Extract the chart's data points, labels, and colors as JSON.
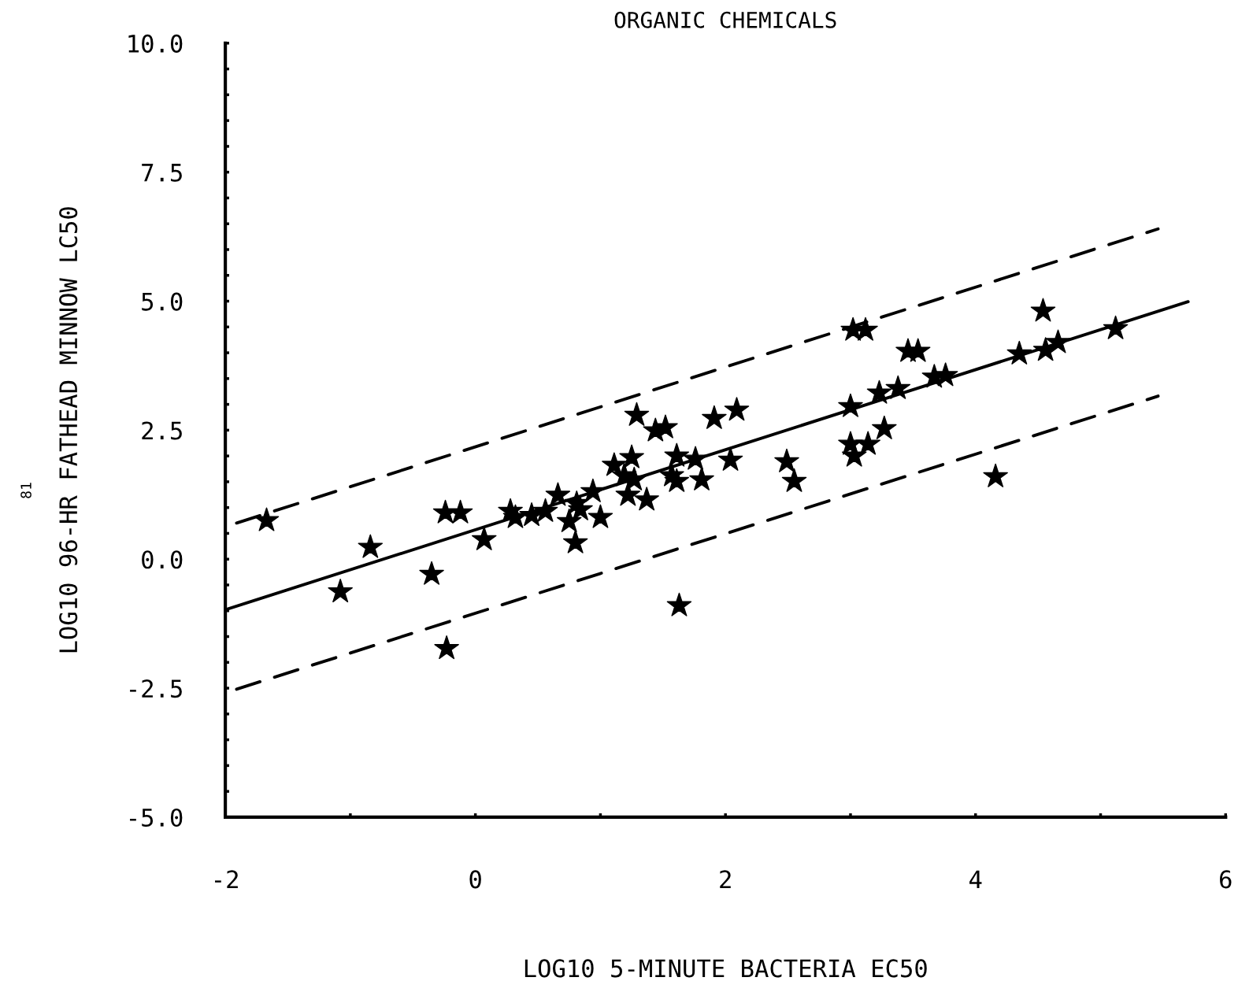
{
  "chart_data": {
    "type": "scatter",
    "title": "ORGANIC CHEMICALS",
    "xlabel": "LOG10 5-MINUTE BACTERIA EC50",
    "ylabel": "LOG10 96-HR FATHEAD MINNOW LC50",
    "annotations": [
      "81"
    ],
    "xlim": [
      -2,
      6
    ],
    "ylim": [
      -5,
      10
    ],
    "xticks": [
      {
        "value": -2,
        "label": "-2"
      },
      {
        "value": -1,
        "label": null
      },
      0,
      {
        "value": 1,
        "label": null
      },
      {
        "value": 2,
        "label": "2"
      },
      {
        "value": 3,
        "label": null
      },
      {
        "value": 4,
        "label": "4"
      },
      {
        "value": 5,
        "label": null
      },
      {
        "value": 6,
        "label": "6"
      }
    ],
    "yticks": [
      {
        "value": -5,
        "label": "-5.0"
      },
      {
        "value": -4.5,
        "label": null
      },
      {
        "value": -4,
        "label": null
      },
      {
        "value": -3.5,
        "label": null
      },
      {
        "value": -3,
        "label": null
      },
      {
        "value": -2.5,
        "label": "-2.5"
      },
      {
        "value": -2,
        "label": null
      },
      {
        "value": -1.5,
        "label": null
      },
      {
        "value": -1,
        "label": null
      },
      {
        "value": -0.5,
        "label": null
      },
      {
        "value": 0,
        "label": "0.0"
      },
      {
        "value": 0.5,
        "label": null
      },
      {
        "value": 1,
        "label": null
      },
      {
        "value": 1.5,
        "label": null
      },
      {
        "value": 2,
        "label": null
      },
      {
        "value": 2.5,
        "label": "2.5"
      },
      {
        "value": 3,
        "label": null
      },
      {
        "value": 3.5,
        "label": null
      },
      {
        "value": 4,
        "label": null
      },
      {
        "value": 4.5,
        "label": null
      },
      {
        "value": 5,
        "label": "5.0"
      },
      {
        "value": 5.5,
        "label": null
      },
      {
        "value": 6,
        "label": null
      },
      {
        "value": 6.5,
        "label": null
      },
      {
        "value": 7,
        "label": null
      },
      {
        "value": 7.5,
        "label": "7.5"
      },
      {
        "value": 8,
        "label": null
      },
      {
        "value": 8.5,
        "label": null
      },
      {
        "value": 9,
        "label": null
      },
      {
        "value": 9.5,
        "label": null
      },
      {
        "value": 10,
        "label": "10.0"
      }
    ],
    "grid": false,
    "marker": "star",
    "series": [
      {
        "color": "#000000",
        "x": [
          -1.67,
          -1.08,
          -0.84,
          -0.35,
          -0.24,
          -0.12,
          -0.23,
          0.07,
          0.28,
          0.32,
          0.45,
          0.56,
          0.66,
          0.75,
          0.8,
          0.81,
          0.84,
          0.94,
          1.0,
          1.11,
          1.19,
          1.22,
          1.25,
          1.27,
          1.29,
          1.37,
          1.44,
          1.52,
          1.57,
          1.61,
          1.61,
          1.63,
          1.76,
          1.81,
          1.91,
          2.09,
          2.04,
          2.49,
          2.55,
          3.0,
          3.03,
          3.14,
          3.27,
          3.0,
          3.23,
          3.38,
          3.02,
          3.12,
          3.46,
          3.54,
          3.67,
          3.76,
          4.16,
          4.35,
          4.54,
          4.56,
          4.66,
          5.12
        ],
        "values": [
          0.75,
          -0.63,
          0.23,
          -0.29,
          0.9,
          0.9,
          -1.73,
          0.38,
          0.93,
          0.81,
          0.85,
          0.93,
          1.24,
          0.73,
          0.32,
          1.08,
          0.96,
          1.31,
          0.81,
          1.82,
          1.62,
          1.24,
          1.97,
          1.54,
          2.79,
          1.15,
          2.49,
          2.55,
          1.62,
          2.0,
          1.51,
          -0.9,
          1.94,
          1.54,
          2.73,
          2.89,
          1.92,
          1.89,
          1.51,
          2.23,
          2.0,
          2.23,
          2.53,
          2.96,
          3.22,
          3.31,
          4.44,
          4.44,
          4.03,
          4.03,
          3.53,
          3.56,
          1.6,
          3.98,
          4.81,
          4.05,
          4.2,
          4.47
        ]
      },
      {
        "type": "line",
        "color": "#000000",
        "line_style": "solid",
        "marker": "none",
        "x": [
          -2,
          5.7
        ],
        "values": [
          -0.98,
          4.99
        ]
      },
      {
        "type": "line",
        "color": "#000000",
        "line_style": "dashed",
        "marker": "none",
        "x": [
          -1.91,
          5.46
        ],
        "values": [
          0.7,
          6.4
        ]
      },
      {
        "type": "line",
        "color": "#000000",
        "line_style": "dashed",
        "marker": "none",
        "x": [
          -1.91,
          5.46
        ],
        "values": [
          -2.52,
          3.16
        ]
      }
    ]
  }
}
